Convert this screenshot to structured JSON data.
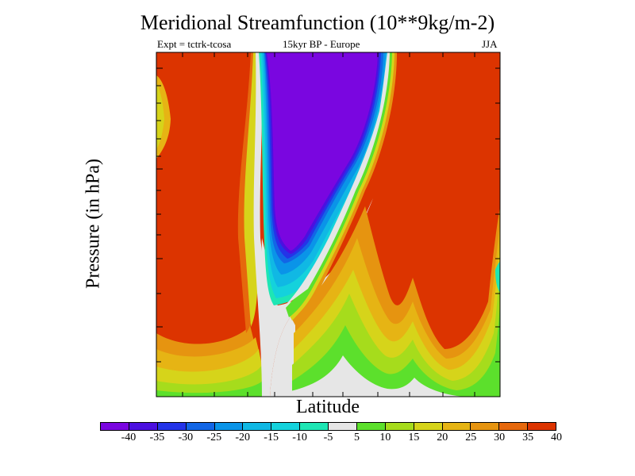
{
  "chart_data": {
    "type": "heatmap",
    "title": "Meridional Streamfunction (10**9kg/m-2)",
    "subtitle_left": "Expt = tctrk-tcosa",
    "subtitle_center": "15kyr BP - Europe",
    "subtitle_right": "JJA",
    "xlabel": "Latitude",
    "ylabel": "Pressure (in hPa)",
    "grid": false,
    "legend": "colorbar-bottom",
    "levels": [
      "-40",
      "-35",
      "-30",
      "-25",
      "-20",
      "-15",
      "-10",
      "-5",
      "5",
      "10",
      "15",
      "20",
      "25",
      "30",
      "35",
      "40"
    ],
    "colors": [
      "#7a06e0",
      "#4b10e0",
      "#2434e8",
      "#1266e6",
      "#0a94e8",
      "#10b8e4",
      "#14d2dc",
      "#1ee6b4",
      "#e6e6e6",
      "#5ce02c",
      "#a6dc1c",
      "#d6d41a",
      "#e6b414",
      "#e69410",
      "#e6680c",
      "#dc3400"
    ],
    "regions": {
      "positive": 40,
      "negative": -40,
      "neutral": 0
    }
  }
}
